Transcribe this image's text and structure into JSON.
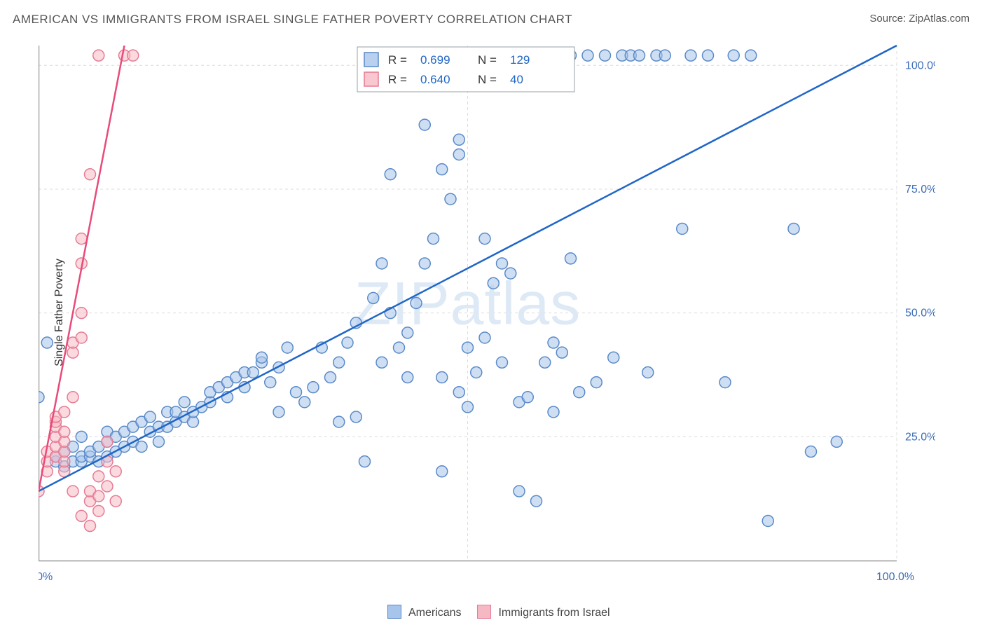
{
  "title": "AMERICAN VS IMMIGRANTS FROM ISRAEL SINGLE FATHER POVERTY CORRELATION CHART",
  "source_label": "Source: ",
  "source_site": "ZipAtlas.com",
  "ylabel": "Single Father Poverty",
  "watermark": "ZIPatlas",
  "chart": {
    "type": "scatter-with-regression",
    "xlim": [
      0,
      100
    ],
    "ylim": [
      0,
      104
    ],
    "xtick_labels": [
      "0.0%",
      "100.0%"
    ],
    "xtick_positions": [
      0,
      100
    ],
    "ytick_labels": [
      "25.0%",
      "50.0%",
      "75.0%",
      "100.0%"
    ],
    "ytick_positions": [
      25,
      50,
      75,
      100
    ],
    "grid_xpositions": [
      0,
      50,
      100
    ],
    "grid_color": "#dcdcdc",
    "axis_color": "#999999",
    "background_color": "#ffffff",
    "marker_radius": 8,
    "marker_stroke_width": 1.5,
    "line_width_blue": 2.5,
    "line_width_pink": 2.5
  },
  "series": {
    "blue": {
      "label": "Americans",
      "fill": "#a7c5ea",
      "fill_opacity": 0.55,
      "stroke": "#5a8ac9",
      "line_color": "#1f66c7",
      "R": "0.699",
      "N": "129",
      "regression": {
        "x1": 0,
        "y1": 14,
        "x2": 100,
        "y2": 104
      },
      "points": [
        [
          0,
          33
        ],
        [
          1,
          44
        ],
        [
          2,
          20
        ],
        [
          2,
          21
        ],
        [
          3,
          19
        ],
        [
          3,
          22
        ],
        [
          4,
          20
        ],
        [
          4,
          23
        ],
        [
          5,
          20
        ],
        [
          5,
          21
        ],
        [
          5,
          25
        ],
        [
          6,
          21
        ],
        [
          6,
          22
        ],
        [
          7,
          20
        ],
        [
          7,
          23
        ],
        [
          8,
          21
        ],
        [
          8,
          24
        ],
        [
          8,
          26
        ],
        [
          9,
          22
        ],
        [
          9,
          25
        ],
        [
          10,
          23
        ],
        [
          10,
          26
        ],
        [
          11,
          24
        ],
        [
          11,
          27
        ],
        [
          12,
          23
        ],
        [
          12,
          28
        ],
        [
          13,
          26
        ],
        [
          13,
          29
        ],
        [
          14,
          24
        ],
        [
          14,
          27
        ],
        [
          15,
          27
        ],
        [
          15,
          30
        ],
        [
          16,
          28
        ],
        [
          16,
          30
        ],
        [
          17,
          29
        ],
        [
          17,
          32
        ],
        [
          18,
          28
        ],
        [
          18,
          30
        ],
        [
          19,
          31
        ],
        [
          20,
          32
        ],
        [
          20,
          34
        ],
        [
          21,
          35
        ],
        [
          22,
          33
        ],
        [
          22,
          36
        ],
        [
          23,
          37
        ],
        [
          24,
          35
        ],
        [
          24,
          38
        ],
        [
          25,
          38
        ],
        [
          26,
          40
        ],
        [
          26,
          41
        ],
        [
          27,
          36
        ],
        [
          28,
          39
        ],
        [
          28,
          30
        ],
        [
          29,
          43
        ],
        [
          30,
          34
        ],
        [
          31,
          32
        ],
        [
          32,
          35
        ],
        [
          33,
          43
        ],
        [
          34,
          37
        ],
        [
          35,
          28
        ],
        [
          35,
          40
        ],
        [
          36,
          44
        ],
        [
          37,
          29
        ],
        [
          37,
          48
        ],
        [
          38,
          20
        ],
        [
          39,
          53
        ],
        [
          40,
          40
        ],
        [
          40,
          60
        ],
        [
          41,
          50
        ],
        [
          41,
          78
        ],
        [
          42,
          43
        ],
        [
          43,
          37
        ],
        [
          43,
          46
        ],
        [
          44,
          52
        ],
        [
          45,
          60
        ],
        [
          45,
          88
        ],
        [
          46,
          65
        ],
        [
          47,
          18
        ],
        [
          47,
          79
        ],
        [
          48,
          73
        ],
        [
          49,
          82
        ],
        [
          49,
          85
        ],
        [
          50,
          31
        ],
        [
          50,
          43
        ],
        [
          51,
          38
        ],
        [
          52,
          45
        ],
        [
          52,
          65
        ],
        [
          53,
          56
        ],
        [
          54,
          40
        ],
        [
          54,
          60
        ],
        [
          55,
          58
        ],
        [
          56,
          14
        ],
        [
          56,
          32
        ],
        [
          57,
          33
        ],
        [
          57,
          102
        ],
        [
          58,
          12
        ],
        [
          59,
          40
        ],
        [
          59,
          102
        ],
        [
          60,
          30
        ],
        [
          60,
          102
        ],
        [
          61,
          42
        ],
        [
          62,
          102
        ],
        [
          63,
          34
        ],
        [
          64,
          102
        ],
        [
          65,
          36
        ],
        [
          66,
          102
        ],
        [
          67,
          41
        ],
        [
          68,
          102
        ],
        [
          69,
          102
        ],
        [
          70,
          102
        ],
        [
          71,
          38
        ],
        [
          72,
          102
        ],
        [
          73,
          102
        ],
        [
          75,
          67
        ],
        [
          76,
          102
        ],
        [
          78,
          102
        ],
        [
          80,
          36
        ],
        [
          81,
          102
        ],
        [
          83,
          102
        ],
        [
          85,
          8
        ],
        [
          88,
          67
        ],
        [
          90,
          22
        ],
        [
          93,
          24
        ],
        [
          55,
          102
        ],
        [
          52,
          102
        ],
        [
          50,
          102
        ],
        [
          60,
          44
        ],
        [
          62,
          61
        ],
        [
          47,
          37
        ],
        [
          49,
          34
        ]
      ]
    },
    "pink": {
      "label": "Immigrants from Israel",
      "fill": "#f6b9c4",
      "fill_opacity": 0.55,
      "stroke": "#e77b94",
      "line_color": "#e84b7a",
      "R": "0.640",
      "N": "40",
      "regression": {
        "x1": 0,
        "y1": 14,
        "x2": 10,
        "y2": 104
      },
      "points": [
        [
          0,
          14
        ],
        [
          1,
          18
        ],
        [
          1,
          20
        ],
        [
          1,
          22
        ],
        [
          2,
          21
        ],
        [
          2,
          23
        ],
        [
          2,
          25
        ],
        [
          2,
          27
        ],
        [
          2,
          28
        ],
        [
          2,
          29
        ],
        [
          3,
          18
        ],
        [
          3,
          20
        ],
        [
          3,
          22
        ],
        [
          3,
          24
        ],
        [
          3,
          26
        ],
        [
          3,
          30
        ],
        [
          4,
          33
        ],
        [
          4,
          42
        ],
        [
          4,
          44
        ],
        [
          5,
          45
        ],
        [
          5,
          65
        ],
        [
          5,
          60
        ],
        [
          5,
          50
        ],
        [
          5,
          9
        ],
        [
          6,
          7
        ],
        [
          6,
          12
        ],
        [
          6,
          14
        ],
        [
          6,
          78
        ],
        [
          7,
          10
        ],
        [
          7,
          13
        ],
        [
          7,
          17
        ],
        [
          7,
          102
        ],
        [
          8,
          15
        ],
        [
          8,
          20
        ],
        [
          8,
          24
        ],
        [
          9,
          12
        ],
        [
          9,
          18
        ],
        [
          10,
          102
        ],
        [
          11,
          102
        ],
        [
          4,
          14
        ]
      ]
    }
  },
  "legend_box": {
    "r_label": "R =",
    "n_label": "N =",
    "border_color": "#9aa0a6",
    "text_color_label": "#333333",
    "text_color_value": "#1f66c7"
  },
  "bottom_legend": {
    "blue_swatch_fill": "#a7c5ea",
    "blue_swatch_stroke": "#5a8ac9",
    "pink_swatch_fill": "#f6b9c4",
    "pink_swatch_stroke": "#e77b94"
  }
}
